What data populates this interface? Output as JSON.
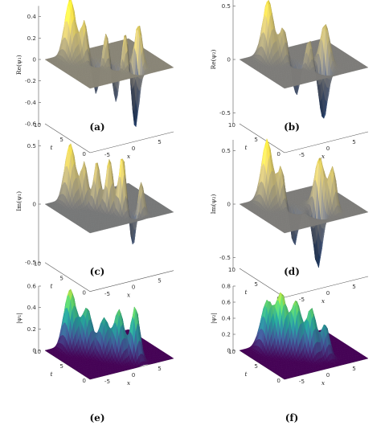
{
  "chart_data": [
    {
      "type": "surface",
      "panel": "(a)",
      "zlabel": "Re(ψ₁)",
      "tlabel": "t",
      "xlabel": "x",
      "zticks": [
        0.4,
        0.2,
        0,
        -0.2,
        -0.4,
        -0.6
      ],
      "zlim": [
        -0.6,
        0.5
      ],
      "tticks": [
        10,
        5,
        0
      ],
      "xticks": [
        -5,
        0,
        5
      ],
      "xlim": [
        -8,
        8
      ],
      "tlim": [
        0,
        10
      ],
      "colormap": "cividis",
      "features": [
        {
          "t": 9,
          "x": -4,
          "amp": 0.55,
          "wx": 0.7,
          "wt": 0.9
        },
        {
          "t": 7.5,
          "x": -2.6,
          "amp": 0.35,
          "wx": 0.5,
          "wt": 0.5
        },
        {
          "t": 6,
          "x": -1.6,
          "amp": -0.3,
          "wx": 0.5,
          "wt": 0.5
        },
        {
          "t": 5,
          "x": -0.6,
          "amp": 0.3,
          "wx": 0.5,
          "wt": 0.5
        },
        {
          "t": 4,
          "x": 0.4,
          "amp": -0.35,
          "wx": 0.5,
          "wt": 0.5
        },
        {
          "t": 3,
          "x": 1.4,
          "amp": 0.35,
          "wx": 0.5,
          "wt": 0.5
        },
        {
          "t": 2,
          "x": 2.4,
          "amp": -0.6,
          "wx": 0.5,
          "wt": 0.6
        },
        {
          "t": 2.5,
          "x": 3.4,
          "amp": 0.45,
          "wx": 0.5,
          "wt": 0.6
        }
      ]
    },
    {
      "type": "surface",
      "panel": "(b)",
      "zlabel": "Re(ψ₂)",
      "tlabel": "t",
      "xlabel": "x",
      "zticks": [
        0.5,
        0,
        -0.5
      ],
      "zlim": [
        -0.6,
        0.6
      ],
      "tticks": [
        10,
        5,
        0
      ],
      "xticks": [
        -5,
        0,
        5
      ],
      "xlim": [
        -8,
        8
      ],
      "tlim": [
        0,
        10
      ],
      "colormap": "cividis",
      "features": [
        {
          "t": 8.5,
          "x": -3.8,
          "amp": 0.55,
          "wx": 0.7,
          "wt": 0.9
        },
        {
          "t": 7,
          "x": -2.2,
          "amp": 0.3,
          "wx": 0.6,
          "wt": 0.6
        },
        {
          "t": 5.5,
          "x": -1.0,
          "amp": -0.3,
          "wx": 0.5,
          "wt": 0.6
        },
        {
          "t": 4,
          "x": 0.2,
          "amp": 0.25,
          "wx": 0.5,
          "wt": 0.6
        },
        {
          "t": 2.5,
          "x": 1.6,
          "amp": -0.5,
          "wx": 0.6,
          "wt": 0.7
        },
        {
          "t": 3.5,
          "x": 2.8,
          "amp": 0.4,
          "wx": 0.6,
          "wt": 0.8
        }
      ]
    },
    {
      "type": "surface",
      "panel": "(c)",
      "zlabel": "Im(ψ₁)",
      "tlabel": "t",
      "xlabel": "x",
      "zticks": [
        0.5,
        0,
        -0.5
      ],
      "zlim": [
        -0.5,
        0.55
      ],
      "tticks": [
        10,
        5,
        0
      ],
      "xticks": [
        -5,
        0,
        5
      ],
      "xlim": [
        -8,
        8
      ],
      "tlim": [
        0,
        10
      ],
      "colormap": "cividis",
      "features": [
        {
          "t": 9,
          "x": -4,
          "amp": 0.5,
          "wx": 0.7,
          "wt": 0.9
        },
        {
          "t": 7.5,
          "x": -2.6,
          "amp": 0.35,
          "wx": 0.5,
          "wt": 0.5
        },
        {
          "t": 6,
          "x": -1.5,
          "amp": 0.4,
          "wx": 0.5,
          "wt": 0.5
        },
        {
          "t": 4.5,
          "x": -0.4,
          "amp": 0.45,
          "wx": 0.5,
          "wt": 0.5
        },
        {
          "t": 3,
          "x": 0.8,
          "amp": 0.5,
          "wx": 0.5,
          "wt": 0.6
        },
        {
          "t": 2,
          "x": 2.0,
          "amp": -0.3,
          "wx": 0.5,
          "wt": 0.5
        },
        {
          "t": 1.5,
          "x": 3.0,
          "amp": 0.3,
          "wx": 0.5,
          "wt": 0.5
        }
      ]
    },
    {
      "type": "surface",
      "panel": "(d)",
      "zlabel": "Im(ψ₂)",
      "tlabel": "t",
      "xlabel": "x",
      "zticks": [
        0.5,
        0,
        -0.5
      ],
      "zlim": [
        -0.6,
        0.6
      ],
      "tticks": [
        10,
        5,
        0
      ],
      "xticks": [
        -5,
        0,
        5
      ],
      "xlim": [
        -8,
        8
      ],
      "tlim": [
        0,
        10
      ],
      "colormap": "cividis",
      "features": [
        {
          "t": 8.5,
          "x": -4,
          "amp": 0.6,
          "wx": 0.7,
          "wt": 0.9
        },
        {
          "t": 7,
          "x": -2.6,
          "amp": 0.35,
          "wx": 0.5,
          "wt": 0.6
        },
        {
          "t": 5.5,
          "x": -1.4,
          "amp": -0.35,
          "wx": 0.5,
          "wt": 0.6
        },
        {
          "t": 3,
          "x": 1.0,
          "amp": -0.55,
          "wx": 0.6,
          "wt": 0.7
        },
        {
          "t": 4,
          "x": 2.2,
          "amp": 0.5,
          "wx": 0.6,
          "wt": 0.9
        },
        {
          "t": 2.5,
          "x": 3.4,
          "amp": 0.4,
          "wx": 0.5,
          "wt": 0.6
        }
      ]
    },
    {
      "type": "surface",
      "panel": "(e)",
      "zlabel": "|ψ₁|",
      "tlabel": "t",
      "xlabel": "x",
      "zticks": [
        0.6,
        0.4,
        0.2,
        0
      ],
      "zlim": [
        0,
        0.6
      ],
      "tticks": [
        10,
        5,
        0
      ],
      "xticks": [
        -5,
        0,
        5
      ],
      "xlim": [
        -8,
        8
      ],
      "tlim": [
        0,
        10
      ],
      "colormap": "viridis",
      "features": [
        {
          "t": 9,
          "x": -4,
          "amp": 0.55,
          "wx": 0.8,
          "wt": 1.0
        },
        {
          "t": 7,
          "x": -2.5,
          "amp": 0.4,
          "wx": 0.7,
          "wt": 0.8
        },
        {
          "t": 5,
          "x": -1.0,
          "amp": 0.35,
          "wx": 0.7,
          "wt": 0.8
        },
        {
          "t": 3.5,
          "x": 0.6,
          "amp": 0.45,
          "wx": 0.7,
          "wt": 0.8
        },
        {
          "t": 2,
          "x": 2.4,
          "amp": 0.5,
          "wx": 0.6,
          "wt": 0.7
        }
      ]
    },
    {
      "type": "surface",
      "panel": "(f)",
      "zlabel": "|ψ₂|",
      "tlabel": "t",
      "xlabel": "x",
      "zticks": [
        0.8,
        0.6,
        0.4,
        0.2,
        0
      ],
      "zlim": [
        0,
        0.8
      ],
      "tticks": [
        10,
        5,
        0
      ],
      "xticks": [
        -5,
        0,
        5
      ],
      "xlim": [
        -8,
        8
      ],
      "tlim": [
        0,
        10
      ],
      "colormap": "viridis",
      "features": [
        {
          "t": 8.5,
          "x": -4,
          "amp": 0.6,
          "wx": 0.8,
          "wt": 1.0
        },
        {
          "t": 7,
          "x": -2.5,
          "amp": 0.7,
          "wx": 0.7,
          "wt": 0.9
        },
        {
          "t": 5.5,
          "x": -1.0,
          "amp": 0.65,
          "wx": 0.7,
          "wt": 0.8
        },
        {
          "t": 4,
          "x": 0.6,
          "amp": 0.6,
          "wx": 0.7,
          "wt": 0.8
        },
        {
          "t": 3,
          "x": 2.4,
          "amp": 0.4,
          "wx": 0.6,
          "wt": 0.7
        }
      ]
    }
  ]
}
